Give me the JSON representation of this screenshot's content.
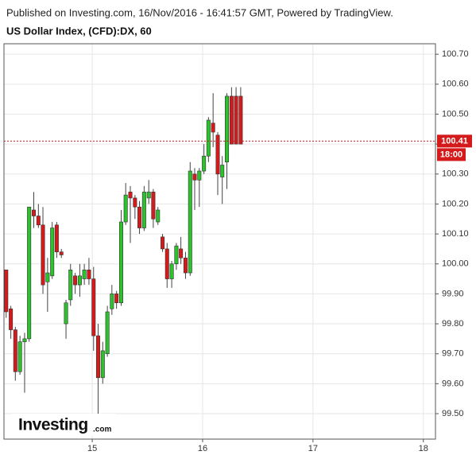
{
  "chart_data": {
    "type": "candlestick",
    "source": "Published on Investing.com, 16/Nov/2016 - 16:41:57 GMT, Powered by TradingView.",
    "title": "US Dollar Index, (CFD):DX, 60",
    "logo": "Investing",
    "logo_suffix": ".com",
    "x": [
      14.22,
      14.262,
      14.303,
      14.345,
      14.387,
      14.428,
      14.47,
      14.512,
      14.553,
      14.595,
      14.637,
      14.678,
      14.72,
      14.762,
      14.803,
      14.845,
      14.887,
      14.928,
      14.97,
      15.012,
      15.053,
      15.095,
      15.137,
      15.178,
      15.22,
      15.262,
      15.303,
      15.345,
      15.387,
      15.428,
      15.47,
      15.512,
      15.553,
      15.595,
      15.637,
      15.678,
      15.72,
      15.762,
      15.803,
      15.845,
      15.887,
      15.928,
      15.97,
      16.012,
      16.053,
      16.095,
      16.137,
      16.178,
      16.22,
      16.262,
      16.303,
      16.345
    ],
    "open": [
      99.98,
      99.85,
      99.78,
      99.64,
      99.74,
      99.75,
      100.18,
      100.16,
      100.13,
      99.94,
      99.96,
      100.13,
      100.04,
      99.8,
      99.88,
      99.96,
      99.93,
      99.95,
      99.98,
      99.95,
      99.76,
      99.62,
      99.7,
      99.85,
      99.9,
      99.87,
      100.14,
      100.24,
      100.22,
      100.19,
      100.12,
      100.22,
      100.24,
      100.14,
      100.09,
      100.05,
      99.95,
      100.0,
      100.05,
      100.02,
      99.97,
      100.3,
      100.28,
      100.31,
      100.36,
      100.47,
      100.43,
      100.29,
      100.34,
      100.56,
      100.56,
      100.56
    ],
    "high": [
      99.98,
      99.86,
      99.79,
      99.76,
      99.77,
      100.19,
      100.24,
      100.2,
      100.19,
      100.02,
      100.14,
      100.14,
      100.05,
      99.88,
      100.0,
      99.97,
      100.0,
      100.0,
      100.02,
      99.99,
      99.8,
      99.74,
      99.86,
      99.93,
      99.91,
      100.18,
      100.27,
      100.26,
      100.23,
      100.21,
      100.26,
      100.28,
      100.25,
      100.19,
      100.1,
      100.07,
      100.01,
      100.07,
      100.09,
      100.04,
      100.34,
      100.32,
      100.32,
      100.4,
      100.49,
      100.57,
      100.44,
      100.36,
      100.57,
      100.59,
      100.59,
      100.59
    ],
    "low": [
      99.82,
      99.75,
      99.61,
      99.63,
      99.57,
      99.74,
      100.12,
      100.12,
      99.9,
      99.84,
      99.95,
      100.02,
      100.02,
      99.75,
      99.86,
      99.9,
      99.89,
      99.93,
      99.93,
      99.71,
      99.48,
      99.6,
      99.69,
      99.83,
      99.85,
      99.86,
      100.13,
      100.07,
      100.15,
      100.1,
      100.11,
      100.2,
      100.12,
      100.13,
      100.04,
      99.92,
      99.92,
      99.98,
      100.0,
      99.95,
      99.96,
      100.18,
      100.19,
      100.3,
      100.34,
      100.39,
      100.23,
      100.2,
      100.25,
      100.4,
      100.4,
      100.4
    ],
    "close": [
      99.84,
      99.78,
      99.64,
      99.74,
      99.75,
      100.19,
      100.16,
      100.13,
      99.93,
      99.97,
      100.12,
      100.04,
      100.03,
      99.87,
      99.98,
      99.93,
      99.96,
      99.98,
      99.95,
      99.76,
      99.62,
      99.71,
      99.84,
      99.9,
      99.87,
      100.14,
      100.23,
      100.22,
      100.19,
      100.12,
      100.24,
      100.24,
      100.15,
      100.18,
      100.05,
      99.95,
      100.0,
      100.06,
      100.02,
      99.97,
      100.31,
      100.28,
      100.31,
      100.36,
      100.48,
      100.44,
      100.3,
      100.33,
      100.56,
      100.4,
      100.4,
      100.4
    ],
    "up_color": "#2bc22b",
    "down_color": "#d41a1a",
    "xlim": [
      14.2,
      18.11
    ],
    "xticks": [
      15,
      16,
      17,
      18
    ],
    "ylim": [
      99.415,
      100.735
    ],
    "yticks": [
      {
        "value": 99.5,
        "label": "99.50"
      },
      {
        "value": 99.6,
        "label": "99.60"
      },
      {
        "value": 99.7,
        "label": "99.70"
      },
      {
        "value": 99.8,
        "label": "99.80"
      },
      {
        "value": 99.9,
        "label": "99.90"
      },
      {
        "value": 100.0,
        "label": "100.00"
      },
      {
        "value": 100.1,
        "label": "100.10"
      },
      {
        "value": 100.2,
        "label": "100.20"
      },
      {
        "value": 100.3,
        "label": "100.30"
      },
      {
        "value": 100.4,
        "label": "100.40"
      },
      {
        "value": 100.5,
        "label": "100.50"
      },
      {
        "value": 100.6,
        "label": "100.60"
      },
      {
        "value": 100.7,
        "label": "100.70"
      }
    ],
    "current_price": 100.41,
    "current_color": "#d41a1a",
    "countdown": "18:00",
    "grid": true
  }
}
